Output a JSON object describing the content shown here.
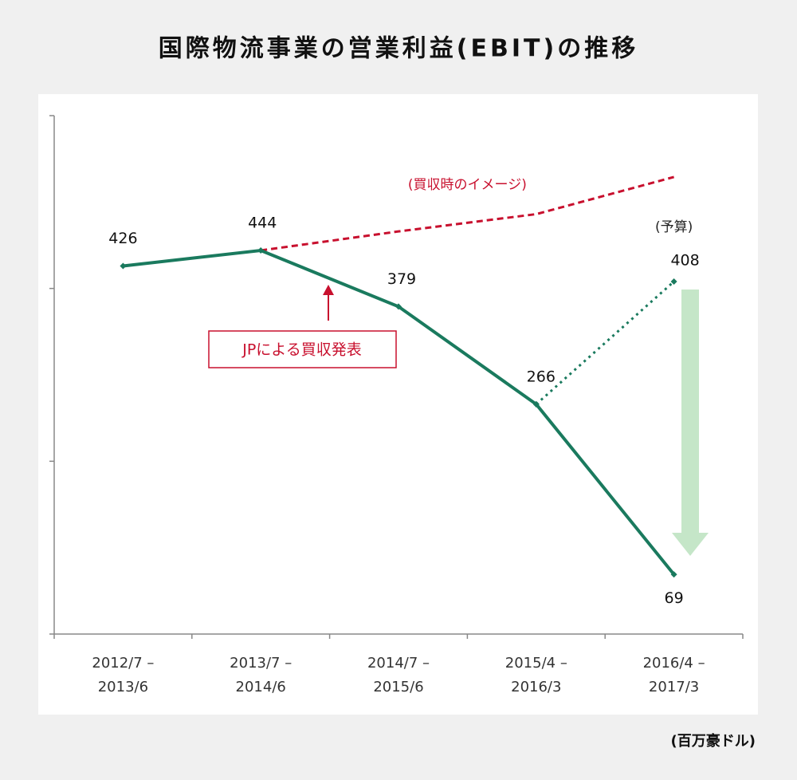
{
  "chart_data": {
    "type": "line",
    "title": "国際物流事業の営業利益(EBIT)の推移",
    "unit": "(百万豪ドル)",
    "categories": [
      [
        "2012/7 –",
        "2013/6"
      ],
      [
        "2013/7 –",
        "2014/6"
      ],
      [
        "2014/7 –",
        "2015/6"
      ],
      [
        "2015/4 –",
        "2016/3"
      ],
      [
        "2016/4 –",
        "2017/3"
      ]
    ],
    "series": [
      {
        "color": "#1a7a5e",
        "style": "solid",
        "values": [
          426,
          444,
          379,
          266,
          69
        ]
      },
      {
        "name": "(予算)",
        "color": "#1a7a5e",
        "style": "dotted",
        "values": [
          null,
          null,
          null,
          266,
          408
        ]
      },
      {
        "name": "(買収時のイメージ)",
        "color": "#c8102e",
        "style": "dashed",
        "values": [
          null,
          444,
          466,
          486,
          529
        ]
      }
    ],
    "annotation": "JPによる買収発表",
    "ylim": [
      0,
      600
    ],
    "yticks": [
      0,
      200,
      400,
      600
    ],
    "grid": false
  }
}
